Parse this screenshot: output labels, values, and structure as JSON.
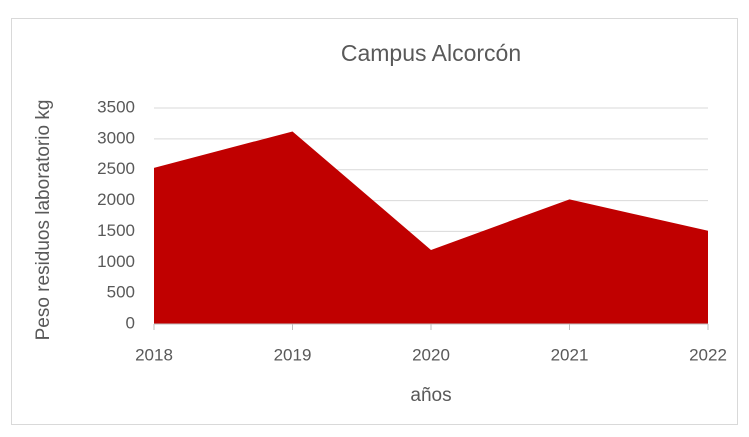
{
  "chart_data": {
    "type": "area",
    "title": "Campus Alcorcón",
    "x_label": "años",
    "y_label": "Peso residuos laboratorio kg",
    "categories": [
      "2018",
      "2019",
      "2020",
      "2021",
      "2022"
    ],
    "values": [
      2530,
      3120,
      1200,
      2020,
      1510
    ],
    "color": "#c00000",
    "ylim": [
      0,
      3500
    ],
    "yticks": [
      0,
      500,
      1000,
      1500,
      2000,
      2500,
      3000,
      3500
    ],
    "grid": true
  }
}
